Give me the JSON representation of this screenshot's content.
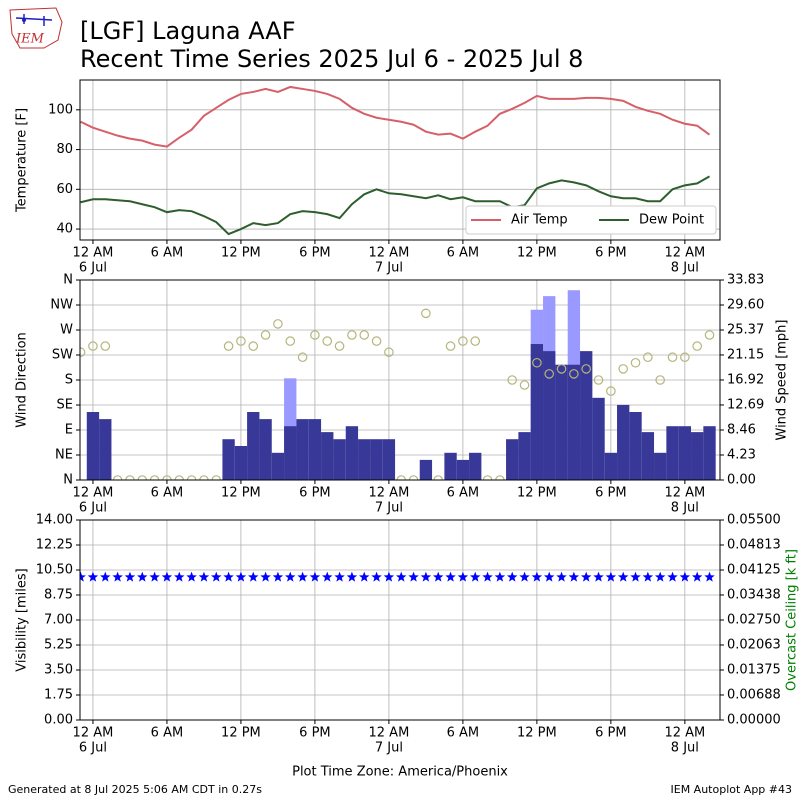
{
  "header": {
    "logo": "IEM",
    "title": "[LGF] Laguna AAF",
    "subtitle": "Recent Time Series 2025 Jul 6 - 2025 Jul 8"
  },
  "chart_data": [
    {
      "type": "line",
      "ylabel": "Temperature [F]",
      "grid": true,
      "legend": "lower right",
      "xlim": [
        -1.05,
        50.85
      ],
      "ylim": [
        34.5,
        115
      ],
      "yticks": [
        40,
        60,
        80,
        100
      ],
      "xticks": [
        {
          "value": 0,
          "label": "12 AM"
        },
        {
          "value": 6,
          "label": "6 AM"
        },
        {
          "value": 12,
          "label": "12 PM"
        },
        {
          "value": 18,
          "label": "6 PM"
        },
        {
          "value": 24,
          "label": "12 AM"
        },
        {
          "value": 30,
          "label": "6 AM"
        },
        {
          "value": 36,
          "label": "12 PM"
        },
        {
          "value": 42,
          "label": "6 PM"
        },
        {
          "value": 48,
          "label": "12 AM"
        }
      ],
      "xdates": [
        {
          "value": 0,
          "label": "6 Jul"
        },
        {
          "value": 24,
          "label": "7 Jul"
        },
        {
          "value": 48,
          "label": "8 Jul"
        }
      ],
      "x": [
        -1,
        0,
        1,
        2,
        3,
        4,
        5,
        6,
        7,
        8,
        9,
        10,
        11,
        12,
        13,
        14,
        15,
        16,
        17,
        18,
        19,
        20,
        21,
        22,
        23,
        24,
        25,
        26,
        27,
        28,
        29,
        30,
        31,
        32,
        33,
        34,
        35,
        36,
        37,
        38,
        39,
        40,
        41,
        42,
        43,
        44,
        45,
        46,
        47,
        48,
        49,
        50
      ],
      "series": [
        {
          "name": "Air Temp",
          "color": "#d6606a",
          "type": "line",
          "values": [
            94,
            91,
            89,
            87,
            85.5,
            84.5,
            82.5,
            81.5,
            86,
            90,
            97,
            101,
            105,
            108,
            109,
            110.5,
            109,
            111.5,
            110.5,
            109.5,
            108,
            105.5,
            101,
            98,
            96,
            95,
            94,
            92.5,
            89,
            87.5,
            88,
            85.5,
            89,
            92,
            98,
            100.5,
            103.5,
            107,
            105.5,
            105.5,
            105.5,
            106,
            106,
            105.5,
            104.5,
            101.5,
            99.5,
            98,
            95,
            93,
            92,
            87.5
          ]
        },
        {
          "name": "Dew Point",
          "color": "#2e5e2e",
          "type": "line",
          "values": [
            53.5,
            55,
            55,
            54.5,
            54,
            52.5,
            51,
            48.5,
            49.5,
            49,
            46.5,
            43.5,
            37.5,
            40,
            43,
            42,
            43,
            47.5,
            49,
            48.5,
            47.5,
            45.5,
            52.5,
            57.5,
            60,
            58,
            57.5,
            56.5,
            55.5,
            57,
            55,
            56,
            54,
            54,
            54,
            51,
            52,
            60.5,
            63,
            64.5,
            63.5,
            62,
            59,
            56.5,
            55.5,
            55.5,
            54,
            54,
            60,
            62,
            63,
            66.5
          ]
        }
      ]
    },
    {
      "type": "combo",
      "ylabel": "Wind Direction",
      "y2label": "Wind Speed [mph]",
      "grid": true,
      "xlim": [
        -1.05,
        50.85
      ],
      "ylim": [
        0,
        360
      ],
      "yticks": [
        {
          "value": 0,
          "label": "N"
        },
        {
          "value": 45,
          "label": "NE"
        },
        {
          "value": 90,
          "label": "E"
        },
        {
          "value": 135,
          "label": "SE"
        },
        {
          "value": 180,
          "label": "S"
        },
        {
          "value": 225,
          "label": "SW"
        },
        {
          "value": 270,
          "label": "W"
        },
        {
          "value": 315,
          "label": "NW"
        },
        {
          "value": 360,
          "label": "N"
        }
      ],
      "y2lim": [
        0,
        33.83
      ],
      "y2ticks": [
        {
          "value": 0,
          "label": "0.00"
        },
        4.23,
        8.46,
        12.69,
        16.92,
        21.15,
        25.37,
        {
          "value": 29.6,
          "label": "29.60"
        },
        33.83
      ],
      "xticks": [
        {
          "value": 0,
          "label": "12 AM"
        },
        {
          "value": 6,
          "label": "6 AM"
        },
        {
          "value": 12,
          "label": "12 PM"
        },
        {
          "value": 18,
          "label": "6 PM"
        },
        {
          "value": 24,
          "label": "12 AM"
        },
        {
          "value": 30,
          "label": "6 AM"
        },
        {
          "value": 36,
          "label": "12 PM"
        },
        {
          "value": 42,
          "label": "6 PM"
        },
        {
          "value": 48,
          "label": "12 AM"
        }
      ],
      "xdates": [
        {
          "value": 0,
          "label": "6 Jul"
        },
        {
          "value": 24,
          "label": "7 Jul"
        },
        {
          "value": 48,
          "label": "8 Jul"
        }
      ],
      "x": [
        -1,
        0,
        1,
        2,
        3,
        4,
        5,
        6,
        7,
        8,
        9,
        10,
        11,
        12,
        13,
        14,
        15,
        16,
        17,
        18,
        19,
        20,
        21,
        22,
        23,
        24,
        25,
        26,
        27,
        28,
        29,
        30,
        31,
        32,
        33,
        34,
        35,
        36,
        37,
        38,
        39,
        40,
        41,
        42,
        43,
        44,
        45,
        46,
        47,
        48,
        49,
        50
      ],
      "series": [
        {
          "type": "bar",
          "axis": "y2",
          "color": "#9999ff",
          "values": [
            null,
            null,
            null,
            null,
            null,
            null,
            null,
            null,
            null,
            null,
            null,
            null,
            null,
            null,
            null,
            null,
            null,
            17.2,
            null,
            null,
            null,
            null,
            null,
            null,
            null,
            null,
            null,
            null,
            null,
            null,
            null,
            null,
            null,
            null,
            null,
            null,
            null,
            28.8,
            31.1,
            null,
            32.1,
            null,
            null,
            null,
            null,
            null,
            null,
            null,
            null,
            null,
            null,
            null
          ]
        },
        {
          "type": "bar",
          "axis": "y2",
          "color": "#383898",
          "values": [
            0,
            11.5,
            10.3,
            0,
            0,
            0,
            0,
            0,
            0,
            0,
            0,
            0,
            6.9,
            5.75,
            11.5,
            10.3,
            4.6,
            9.1,
            10.3,
            10.3,
            8.1,
            6.9,
            9.1,
            6.9,
            6.9,
            6.9,
            0,
            0,
            3.4,
            0,
            4.6,
            3.4,
            4.6,
            0,
            0,
            6.9,
            8.1,
            23.0,
            21.8,
            19.5,
            19.5,
            21.8,
            13.9,
            4.6,
            12.7,
            11.5,
            8.1,
            4.6,
            9.1,
            9.1,
            8.1,
            9.1
          ]
        },
        {
          "type": "scatter",
          "marker": "circle",
          "color": "#b5b57a",
          "values": [
            230,
            241,
            241,
            0,
            0,
            0,
            0,
            0,
            0,
            0,
            0,
            0,
            241,
            250,
            241,
            261,
            281,
            250,
            221,
            261,
            250,
            241,
            261,
            261,
            250,
            230,
            0,
            0,
            300,
            0,
            241,
            250,
            250,
            0,
            0,
            180,
            171,
            211,
            191,
            200,
            191,
            200,
            180,
            160,
            200,
            211,
            221,
            180,
            221,
            221,
            241,
            261
          ]
        }
      ]
    },
    {
      "type": "scatter",
      "ylabel": "Visibility [miles]",
      "y2label": "Overcast Ceiling [k ft]",
      "y2label_color": "#008000",
      "grid": true,
      "xlim": [
        -1.05,
        50.85
      ],
      "ylim": [
        0,
        14
      ],
      "yticks": [
        {
          "value": 0,
          "label": "0.00"
        },
        1.75,
        {
          "value": 3.5,
          "label": "3.50"
        },
        5.25,
        {
          "value": 7,
          "label": "7.00"
        },
        8.75,
        {
          "value": 10.5,
          "label": "10.50"
        },
        12.25,
        {
          "value": 14,
          "label": "14.00"
        }
      ],
      "y2lim": [
        0,
        0.055
      ],
      "y2ticks": [
        {
          "value": 0,
          "label": "0.00000"
        },
        0.00688,
        0.01375,
        0.02063,
        {
          "value": 0.0275,
          "label": "0.02750"
        },
        0.03438,
        0.04125,
        0.04813,
        {
          "value": 0.055,
          "label": "0.05500"
        }
      ],
      "xticks": [
        {
          "value": 0,
          "label": "12 AM"
        },
        {
          "value": 6,
          "label": "6 AM"
        },
        {
          "value": 12,
          "label": "12 PM"
        },
        {
          "value": 18,
          "label": "6 PM"
        },
        {
          "value": 24,
          "label": "12 AM"
        },
        {
          "value": 30,
          "label": "6 AM"
        },
        {
          "value": 36,
          "label": "12 PM"
        },
        {
          "value": 42,
          "label": "6 PM"
        },
        {
          "value": 48,
          "label": "12 AM"
        }
      ],
      "xdates": [
        {
          "value": 0,
          "label": "6 Jul"
        },
        {
          "value": 24,
          "label": "7 Jul"
        },
        {
          "value": 48,
          "label": "8 Jul"
        }
      ],
      "xlabel": "Plot Time Zone: America/Phoenix",
      "x": [
        -1,
        0,
        1,
        2,
        3,
        4,
        5,
        6,
        7,
        8,
        9,
        10,
        11,
        12,
        13,
        14,
        15,
        16,
        17,
        18,
        19,
        20,
        21,
        22,
        23,
        24,
        25,
        26,
        27,
        28,
        29,
        30,
        31,
        32,
        33,
        34,
        35,
        36,
        37,
        38,
        39,
        40,
        41,
        42,
        43,
        44,
        45,
        46,
        47,
        48,
        49,
        50
      ],
      "series": [
        {
          "type": "scatter",
          "marker": "star",
          "color": "#0000ff",
          "values": [
            10,
            10,
            10,
            10,
            10,
            10,
            10,
            10,
            10,
            10,
            10,
            10,
            10,
            10,
            10,
            10,
            10,
            10,
            10,
            10,
            10,
            10,
            10,
            10,
            10,
            10,
            10,
            10,
            10,
            10,
            10,
            10,
            10,
            10,
            10,
            10,
            10,
            10,
            10,
            10,
            10,
            10,
            10,
            10,
            10,
            10,
            10,
            10,
            10,
            10,
            10,
            10
          ]
        }
      ]
    }
  ],
  "footer": {
    "left": "Generated at 8 Jul 2025 5:06 AM CDT in 0.27s",
    "right": "IEM Autoplot App #43"
  }
}
